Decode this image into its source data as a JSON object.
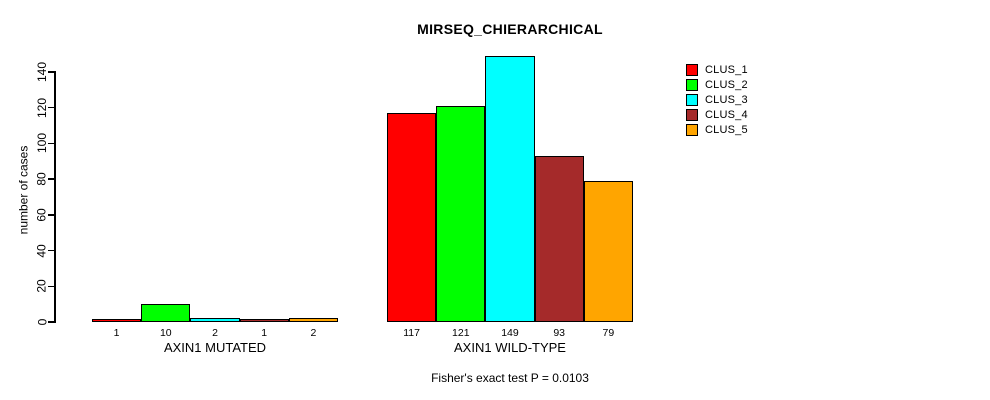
{
  "chart_data": {
    "type": "bar",
    "title": "MIRSEQ_CHIERARCHICAL",
    "ylabel": "number of cases",
    "xlabel": "",
    "ylim": [
      0,
      140
    ],
    "y_ticks": [
      0,
      20,
      40,
      60,
      80,
      100,
      120,
      140
    ],
    "grid": false,
    "legend_position": "top-right-inside",
    "bar_value_labels_shown": true,
    "groups": [
      {
        "label": "AXIN1 MUTATED",
        "values": [
          1,
          10,
          2,
          1,
          2
        ]
      },
      {
        "label": "AXIN1 WILD-TYPE",
        "values": [
          117,
          121,
          149,
          93,
          79
        ]
      }
    ],
    "series": [
      {
        "name": "CLUS_1",
        "color": "#FF0000"
      },
      {
        "name": "CLUS_2",
        "color": "#00FF00"
      },
      {
        "name": "CLUS_3",
        "color": "#00FFFF"
      },
      {
        "name": "CLUS_4",
        "color": "#A52A2A"
      },
      {
        "name": "CLUS_5",
        "color": "#FFA500"
      }
    ],
    "footer": "Fisher's exact test P = 0.0103"
  },
  "colors": {
    "background": "#FFFFFF",
    "axis": "#000000",
    "text": "#000000"
  }
}
